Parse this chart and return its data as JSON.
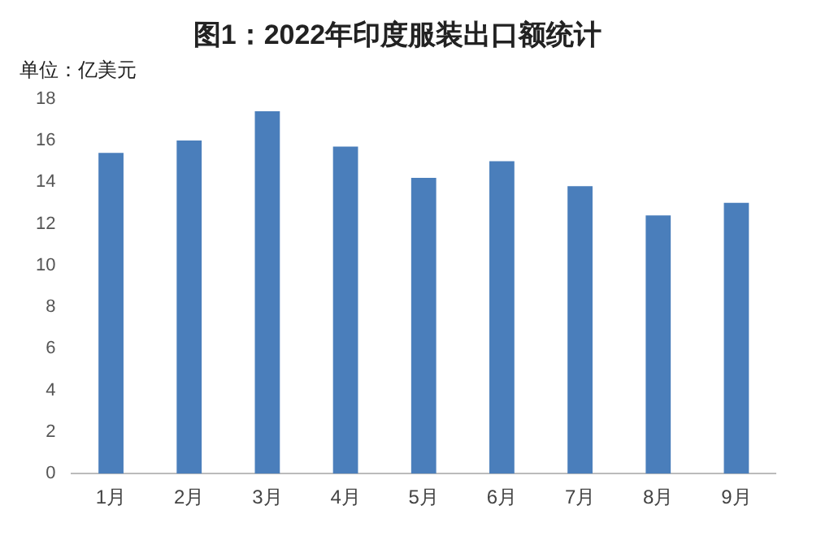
{
  "chart_data": {
    "type": "bar",
    "title": "图1：2022年印度服装出口额统计",
    "ylabel": "单位：亿美元",
    "categories": [
      "1月",
      "2月",
      "3月",
      "4月",
      "5月",
      "6月",
      "7月",
      "8月",
      "9月"
    ],
    "values": [
      15.4,
      16.0,
      17.4,
      15.7,
      14.2,
      15.0,
      13.8,
      12.4,
      13.0
    ],
    "color": "#4a7ebb",
    "ylim": [
      0,
      18
    ],
    "yticks": [
      0,
      2,
      4,
      6,
      8,
      10,
      12,
      14,
      16,
      18
    ],
    "grid": false
  }
}
